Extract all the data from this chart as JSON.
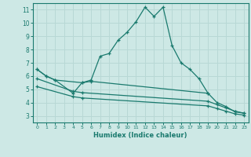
{
  "bg_color": "#cde8e5",
  "line_color": "#1a7a6e",
  "grid_color": "#b8d8d5",
  "xlabel": "Humidex (Indice chaleur)",
  "xlim": [
    -0.5,
    23.5
  ],
  "ylim": [
    2.5,
    11.5
  ],
  "xticks": [
    0,
    1,
    2,
    3,
    4,
    5,
    6,
    7,
    8,
    9,
    10,
    11,
    12,
    13,
    14,
    15,
    16,
    17,
    18,
    19,
    20,
    21,
    22,
    23
  ],
  "yticks": [
    3,
    4,
    5,
    6,
    7,
    8,
    9,
    10,
    11
  ],
  "curve1_x": [
    0,
    1,
    2,
    4,
    5,
    6,
    7,
    8,
    9,
    10,
    11,
    12,
    13,
    14,
    15,
    16,
    17,
    18,
    19
  ],
  "curve1_y": [
    6.5,
    6.0,
    5.7,
    4.7,
    5.5,
    5.7,
    7.5,
    7.7,
    8.7,
    9.3,
    10.1,
    11.2,
    10.5,
    11.2,
    8.3,
    7.0,
    6.5,
    5.8,
    4.7
  ],
  "curve2_x": [
    0,
    1,
    2,
    5,
    6,
    19,
    20,
    21,
    22,
    23
  ],
  "curve2_y": [
    6.5,
    6.0,
    5.7,
    5.5,
    5.6,
    4.7,
    4.0,
    3.7,
    3.3,
    3.2
  ],
  "curve3_x": [
    0,
    4,
    5,
    19,
    20,
    21,
    22,
    23
  ],
  "curve3_y": [
    5.8,
    4.85,
    4.75,
    4.1,
    3.85,
    3.6,
    3.35,
    3.2
  ],
  "curve4_x": [
    0,
    4,
    5,
    19,
    20,
    21,
    22,
    23
  ],
  "curve4_y": [
    5.2,
    4.45,
    4.35,
    3.75,
    3.55,
    3.35,
    3.15,
    3.05
  ]
}
